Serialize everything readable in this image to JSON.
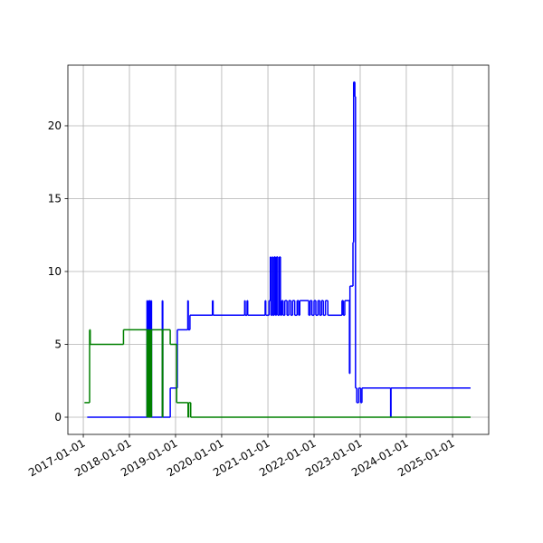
{
  "chart_data": {
    "type": "line",
    "drawstyle": "steps-post",
    "grid": true,
    "xlim": [
      "2016-09-01",
      "2025-10-14"
    ],
    "xticks": [
      "2017-01-01",
      "2018-01-01",
      "2019-01-01",
      "2020-01-01",
      "2021-01-01",
      "2022-01-01",
      "2023-01-01",
      "2024-01-01",
      "2025-01-01"
    ],
    "ylim": [
      -1.18,
      24.16
    ],
    "yticks": [
      0,
      5,
      10,
      15,
      20
    ],
    "series": [
      {
        "color": "#0000ff",
        "x": [
          "2017-02-01",
          "2018-05-20",
          "2018-05-25",
          "2018-06-01",
          "2018-06-05",
          "2018-06-10",
          "2018-06-15",
          "2018-06-20",
          "2018-06-25",
          "2018-09-18",
          "2018-09-22",
          "2018-11-20",
          "2019-01-15",
          "2019-04-08",
          "2019-04-12",
          "2019-04-25",
          "2019-10-20",
          "2019-10-25",
          "2020-07-01",
          "2020-07-05",
          "2020-07-20",
          "2020-07-25",
          "2020-12-10",
          "2020-12-15",
          "2021-01-10",
          "2021-01-20",
          "2021-01-25",
          "2021-02-05",
          "2021-02-10",
          "2021-02-20",
          "2021-03-01",
          "2021-03-10",
          "2021-03-20",
          "2021-04-01",
          "2021-04-10",
          "2021-04-20",
          "2021-05-01",
          "2021-05-15",
          "2021-06-01",
          "2021-06-15",
          "2021-07-01",
          "2021-07-15",
          "2021-08-01",
          "2021-08-20",
          "2021-09-01",
          "2021-09-10",
          "2021-11-20",
          "2021-12-01",
          "2021-12-15",
          "2022-01-01",
          "2022-01-15",
          "2022-02-01",
          "2022-02-15",
          "2022-03-01",
          "2022-03-15",
          "2022-04-01",
          "2022-04-20",
          "2022-08-10",
          "2022-08-20",
          "2022-09-01",
          "2022-10-08",
          "2022-10-12",
          "2022-11-05",
          "2022-11-10",
          "2022-11-20",
          "2022-11-25",
          "2022-12-05",
          "2022-12-20",
          "2023-01-05",
          "2023-01-15",
          "2023-08-30",
          "2023-09-02",
          "2025-05-20"
        ],
        "values": [
          0,
          8,
          0,
          8,
          0,
          8,
          0,
          8,
          0,
          8,
          0,
          2,
          6,
          8,
          6,
          7,
          8,
          7,
          8,
          7,
          8,
          7,
          8,
          7,
          8,
          11,
          7,
          11,
          7,
          11,
          7,
          11,
          7,
          11,
          7,
          8,
          7,
          8,
          7,
          8,
          7,
          8,
          7,
          8,
          7,
          8,
          7,
          8,
          7,
          8,
          7,
          8,
          7,
          8,
          7,
          8,
          7,
          8,
          7,
          8,
          3,
          9,
          12,
          23,
          22,
          2,
          1,
          2,
          1,
          2,
          0,
          2,
          2
        ]
      },
      {
        "color": "#008000",
        "x": [
          "2017-01-10",
          "2017-02-20",
          "2017-02-25",
          "2017-11-15",
          "2018-05-20",
          "2018-05-25",
          "2018-06-01",
          "2018-06-05",
          "2018-06-10",
          "2018-06-15",
          "2018-06-20",
          "2018-06-25",
          "2018-09-18",
          "2018-09-22",
          "2018-11-20",
          "2019-01-10",
          "2019-04-10",
          "2019-04-15",
          "2019-05-01",
          "2025-05-20"
        ],
        "values": [
          1,
          6,
          5,
          6,
          0,
          6,
          0,
          6,
          0,
          6,
          0,
          6,
          0,
          6,
          5,
          1,
          0,
          1,
          0,
          0
        ]
      }
    ]
  }
}
